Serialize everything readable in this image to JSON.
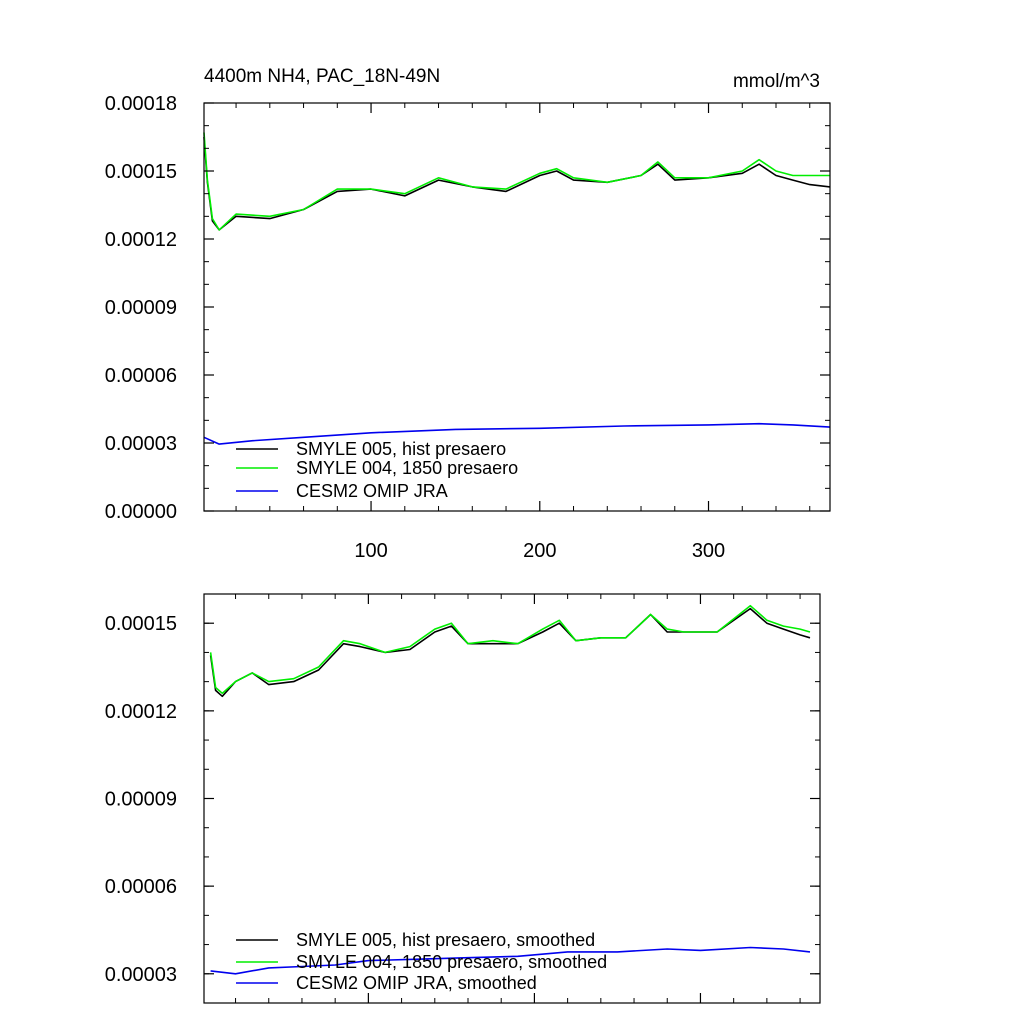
{
  "chart_data": [
    {
      "type": "line",
      "title": "4400m NH4, PAC_18N-49N",
      "units": "mmol/m^3",
      "x_tick_labels": [
        "100",
        "200",
        "300"
      ],
      "y_tick_labels": [
        "0.00000",
        "0.00003",
        "0.00006",
        "0.00009",
        "0.00012",
        "0.00015",
        "0.00018"
      ],
      "xlim": [
        1,
        372
      ],
      "ylim": [
        0.0,
        0.00018
      ],
      "legend_position": "bottom-left",
      "grid": false,
      "series": [
        {
          "name": "SMYLE 005, hist presaero",
          "color": "#000000",
          "x": [
            1,
            3,
            6,
            10,
            20,
            40,
            60,
            80,
            100,
            120,
            140,
            160,
            180,
            200,
            210,
            220,
            240,
            260,
            270,
            280,
            300,
            320,
            330,
            340,
            350,
            360,
            372
          ],
          "y": [
            0.000165,
            0.000145,
            0.000128,
            0.000124,
            0.00013,
            0.000129,
            0.000133,
            0.000141,
            0.000142,
            0.000139,
            0.000146,
            0.000143,
            0.000141,
            0.000148,
            0.00015,
            0.000146,
            0.000145,
            0.000148,
            0.000153,
            0.000146,
            0.000147,
            0.000149,
            0.000153,
            0.000148,
            0.000146,
            0.000144,
            0.000143
          ]
        },
        {
          "name": "SMYLE 004, 1850 presaero",
          "color": "#00ee00",
          "x": [
            1,
            3,
            6,
            10,
            20,
            40,
            60,
            80,
            100,
            120,
            140,
            160,
            180,
            200,
            210,
            220,
            240,
            260,
            270,
            280,
            300,
            320,
            330,
            340,
            350,
            360,
            372
          ],
          "y": [
            0.000167,
            0.000146,
            0.000129,
            0.000124,
            0.000131,
            0.00013,
            0.000133,
            0.000142,
            0.000142,
            0.00014,
            0.000147,
            0.000143,
            0.000142,
            0.000149,
            0.000151,
            0.000147,
            0.000145,
            0.000148,
            0.000154,
            0.000147,
            0.000147,
            0.00015,
            0.000155,
            0.00015,
            0.000148,
            0.000148,
            0.000148
          ]
        },
        {
          "name": "CESM2 OMIP JRA",
          "color": "#0000ee",
          "x": [
            1,
            10,
            30,
            60,
            100,
            150,
            200,
            250,
            300,
            330,
            350,
            372
          ],
          "y": [
            3.25e-05,
            2.95e-05,
            3.1e-05,
            3.25e-05,
            3.45e-05,
            3.6e-05,
            3.65e-05,
            3.75e-05,
            3.8e-05,
            3.85e-05,
            3.8e-05,
            3.7e-05
          ]
        }
      ]
    },
    {
      "type": "line",
      "x_tick_labels": [
        "",
        "",
        ""
      ],
      "y_tick_labels": [
        "0.00003",
        "0.00006",
        "0.00009",
        "0.00012",
        "0.00015"
      ],
      "xlim": [
        1,
        372
      ],
      "ylim": [
        2e-05,
        0.00016
      ],
      "legend_position": "bottom-left",
      "grid": false,
      "series": [
        {
          "name": "SMYLE 005, hist presaero, smoothed",
          "color": "#000000",
          "x": [
            5,
            8,
            12,
            20,
            30,
            40,
            55,
            70,
            85,
            95,
            110,
            125,
            140,
            150,
            160,
            175,
            190,
            205,
            215,
            225,
            240,
            255,
            270,
            280,
            290,
            310,
            330,
            340,
            350,
            360,
            366
          ],
          "y": [
            0.000139,
            0.000127,
            0.000125,
            0.00013,
            0.000133,
            0.000129,
            0.00013,
            0.000134,
            0.000143,
            0.000142,
            0.00014,
            0.000141,
            0.000147,
            0.000149,
            0.000143,
            0.000143,
            0.000143,
            0.000147,
            0.00015,
            0.000144,
            0.000145,
            0.000145,
            0.000153,
            0.000147,
            0.000147,
            0.000147,
            0.000155,
            0.00015,
            0.000148,
            0.000146,
            0.000145
          ]
        },
        {
          "name": "SMYLE 004, 1850 presaero, smoothed",
          "color": "#00ee00",
          "x": [
            5,
            8,
            12,
            20,
            30,
            40,
            55,
            70,
            85,
            95,
            110,
            125,
            140,
            150,
            160,
            175,
            190,
            205,
            215,
            225,
            240,
            255,
            270,
            280,
            290,
            310,
            330,
            340,
            350,
            360,
            366
          ],
          "y": [
            0.00014,
            0.000128,
            0.000126,
            0.00013,
            0.000133,
            0.00013,
            0.000131,
            0.000135,
            0.000144,
            0.000143,
            0.00014,
            0.000142,
            0.000148,
            0.00015,
            0.000143,
            0.000144,
            0.000143,
            0.000148,
            0.000151,
            0.000144,
            0.000145,
            0.000145,
            0.000153,
            0.000148,
            0.000147,
            0.000147,
            0.000156,
            0.000151,
            0.000149,
            0.000148,
            0.000147
          ]
        },
        {
          "name": "CESM2 OMIP JRA, smoothed",
          "color": "#0000ee",
          "x": [
            5,
            20,
            40,
            60,
            80,
            100,
            130,
            160,
            190,
            220,
            250,
            280,
            300,
            330,
            350,
            366
          ],
          "y": [
            3.1e-05,
            3e-05,
            3.2e-05,
            3.25e-05,
            3.3e-05,
            3.45e-05,
            3.5e-05,
            3.55e-05,
            3.6e-05,
            3.75e-05,
            3.75e-05,
            3.85e-05,
            3.8e-05,
            3.9e-05,
            3.85e-05,
            3.75e-05
          ]
        }
      ]
    }
  ]
}
